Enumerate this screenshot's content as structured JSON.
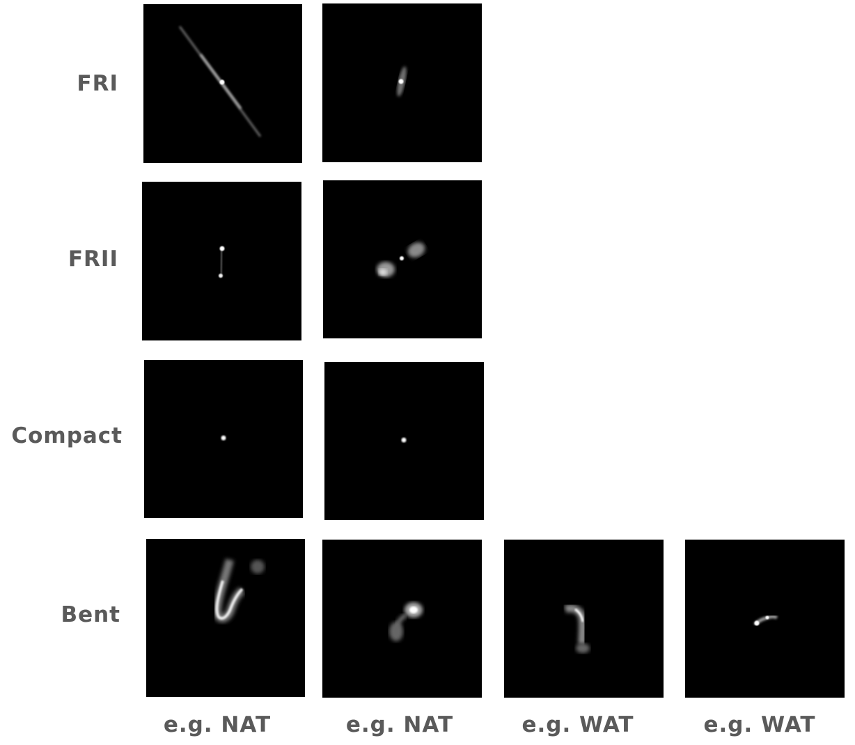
{
  "rows": [
    {
      "label": "FRI"
    },
    {
      "label": "FRII"
    },
    {
      "label": "Compact"
    },
    {
      "label": "Bent"
    }
  ],
  "captions": [
    "e.g. NAT",
    "e.g. NAT",
    "e.g. WAT",
    "e.g. WAT"
  ],
  "colors": {
    "background": "#000000",
    "label_text": "#5a5a5a",
    "source": "#ffffff"
  }
}
